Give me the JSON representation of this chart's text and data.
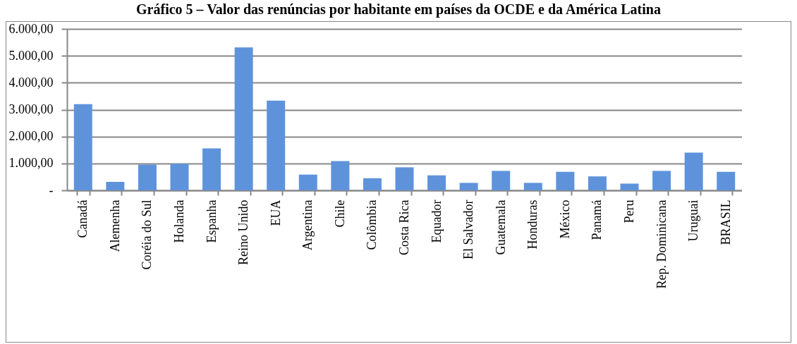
{
  "chart_data": {
    "type": "bar",
    "title": "Gráfico 5 – Valor das renúncias por habitante em países da OCDE e da América Latina",
    "categories": [
      "Canadá",
      "Alemenha",
      "Coréia do Sul",
      "Holanda",
      "Espanha",
      "Reino Unido",
      "EUA",
      "Argentina",
      "Chile",
      "Colômbia",
      "Costa Rica",
      "Equador",
      "El Salvador",
      "Guatemala",
      "Honduras",
      "México",
      "Panamá",
      "Peru",
      "Rep. Dominicana",
      "Uruguai",
      "BRASIL"
    ],
    "values": [
      3200,
      315,
      955,
      990,
      1560,
      5315,
      3333,
      585,
      1090,
      450,
      855,
      555,
      277,
      723,
      277,
      688,
      518,
      250,
      723,
      1400,
      688
    ],
    "color": "#5e93dc",
    "ylim": [
      0,
      6000
    ],
    "yticks": [
      {
        "value": 0,
        "label": "-"
      },
      {
        "value": 1000,
        "label": "1.000,00"
      },
      {
        "value": 2000,
        "label": "2.000,00"
      },
      {
        "value": 3000,
        "label": "3.000,00"
      },
      {
        "value": 4000,
        "label": "4.000,00"
      },
      {
        "value": 5000,
        "label": "5.000,00"
      },
      {
        "value": 6000,
        "label": "6.000,00"
      }
    ],
    "grid": "y"
  }
}
